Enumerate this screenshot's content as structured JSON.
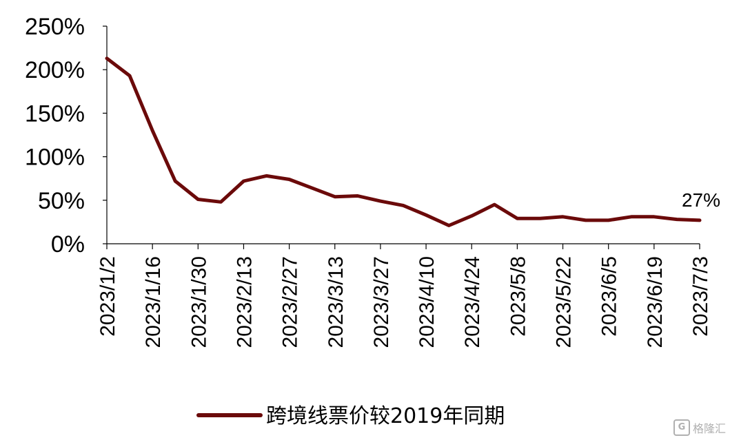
{
  "chart_data": {
    "type": "line",
    "title": "",
    "xlabel": "",
    "ylabel": "",
    "ylim": [
      0,
      250
    ],
    "y_ticks": [
      "0%",
      "50%",
      "100%",
      "150%",
      "200%",
      "250%"
    ],
    "categories": [
      "2023/1/2",
      "2023/1/9",
      "2023/1/16",
      "2023/1/23",
      "2023/1/30",
      "2023/2/6",
      "2023/2/13",
      "2023/2/20",
      "2023/2/27",
      "2023/3/6",
      "2023/3/13",
      "2023/3/20",
      "2023/3/27",
      "2023/4/3",
      "2023/4/10",
      "2023/4/17",
      "2023/4/24",
      "2023/5/1",
      "2023/5/8",
      "2023/5/15",
      "2023/5/22",
      "2023/5/29",
      "2023/6/5",
      "2023/6/12",
      "2023/6/19",
      "2023/6/26",
      "2023/7/3"
    ],
    "x_tick_labels": [
      "2023/1/2",
      "2023/1/16",
      "2023/1/30",
      "2023/2/13",
      "2023/2/27",
      "2023/3/13",
      "2023/3/27",
      "2023/4/10",
      "2023/4/24",
      "2023/5/8",
      "2023/5/22",
      "2023/6/5",
      "2023/6/19",
      "2023/7/3"
    ],
    "series": [
      {
        "name": "跨境线票价较2019年同期",
        "color": "#6b0a0a",
        "values": [
          213,
          193,
          130,
          72,
          51,
          48,
          72,
          78,
          74,
          64,
          54,
          55,
          49,
          44,
          33,
          21,
          32,
          45,
          29,
          29,
          31,
          27,
          27,
          31,
          31,
          28,
          27
        ]
      }
    ],
    "annotations": [
      {
        "text": "27%",
        "index": 26
      }
    ],
    "legend_position": "bottom",
    "grid": false
  },
  "watermark": {
    "logo": "G",
    "text": "格隆汇"
  }
}
